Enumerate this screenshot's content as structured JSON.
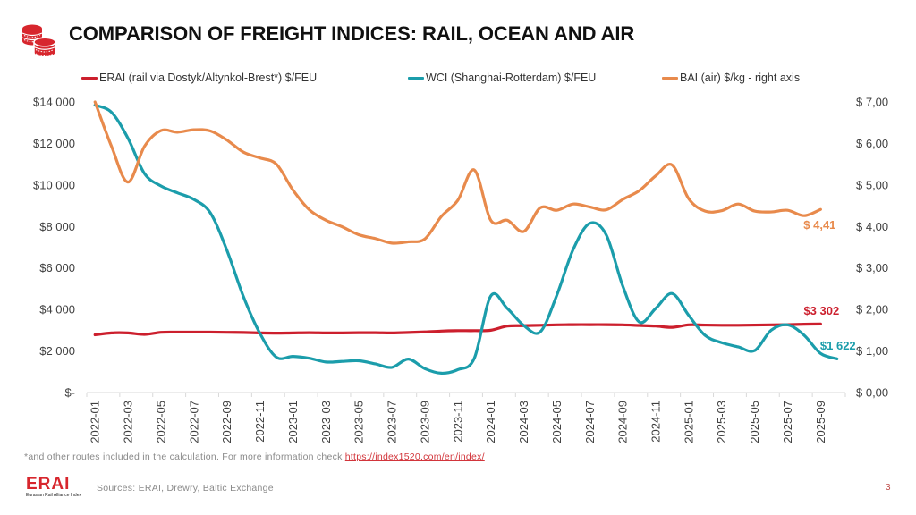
{
  "header": {
    "title": "COMPARISON OF FREIGHT INDICES: RAIL, OCEAN AND AIR",
    "icon": "coins-stack-icon"
  },
  "chart_data": {
    "type": "line",
    "title": "COMPARISON OF FREIGHT INDICES: RAIL, OCEAN AND AIR",
    "xlabel": "",
    "ylabel": "",
    "legend_position": "top",
    "grid": false,
    "x": [
      "2022-01",
      "2022-02",
      "2022-03",
      "2022-04",
      "2022-05",
      "2022-06",
      "2022-07",
      "2022-08",
      "2022-09",
      "2022-10",
      "2022-11",
      "2022-12",
      "2023-01",
      "2023-02",
      "2023-03",
      "2023-04",
      "2023-05",
      "2023-06",
      "2023-07",
      "2023-08",
      "2023-09",
      "2023-10",
      "2023-11",
      "2023-12",
      "2024-01",
      "2024-02",
      "2024-03",
      "2024-04",
      "2024-05",
      "2024-06",
      "2024-07",
      "2024-08",
      "2024-09",
      "2024-10",
      "2024-11",
      "2024-12",
      "2025-01",
      "2025-02",
      "2025-03",
      "2025-04",
      "2025-05",
      "2025-06",
      "2025-07",
      "2025-08",
      "2025-09",
      "2025-10"
    ],
    "x_tick_every": 2,
    "y_left": {
      "range": [
        0,
        14000
      ],
      "ticks": [
        0,
        2000,
        4000,
        6000,
        8000,
        10000,
        12000,
        14000
      ],
      "tick_labels": [
        "$-",
        "$2 000",
        "$4 000",
        "$6 000",
        "$8 000",
        "$10 000",
        "$12 000",
        "$14 000"
      ]
    },
    "y_right": {
      "range": [
        0,
        7
      ],
      "ticks": [
        0,
        1,
        2,
        3,
        4,
        5,
        6,
        7
      ],
      "tick_labels": [
        "$ 0,00",
        "$ 1,00",
        "$ 2,00",
        "$ 3,00",
        "$ 4,00",
        "$ 5,00",
        "$ 6,00",
        "$ 7,00"
      ]
    },
    "series": [
      {
        "id": "erai",
        "name": "ERAI (rail via Dostyk/Altynkol-Brest*)  $/FEU",
        "axis": "left",
        "color": "#CC1F2D",
        "end_label": "$3 302",
        "values": [
          2780,
          2870,
          2870,
          2800,
          2900,
          2910,
          2910,
          2910,
          2900,
          2890,
          2870,
          2860,
          2870,
          2880,
          2870,
          2870,
          2880,
          2880,
          2870,
          2890,
          2920,
          2960,
          2980,
          2980,
          3000,
          3200,
          3220,
          3240,
          3260,
          3270,
          3270,
          3270,
          3260,
          3230,
          3200,
          3140,
          3260,
          3250,
          3240,
          3240,
          3250,
          3260,
          3270,
          3290,
          3302,
          null
        ]
      },
      {
        "id": "wci",
        "name": "WCI (Shanghai-Rotterdam) $/FEU",
        "axis": "left",
        "color": "#1B9DAB",
        "end_label": "$1 622",
        "values": [
          13850,
          13500,
          12250,
          10550,
          9950,
          9620,
          9300,
          8650,
          6850,
          4620,
          2850,
          1700,
          1740,
          1650,
          1470,
          1500,
          1530,
          1380,
          1210,
          1610,
          1150,
          930,
          1100,
          1650,
          4650,
          4050,
          3230,
          2920,
          4680,
          6900,
          8150,
          7600,
          5140,
          3400,
          4050,
          4770,
          3720,
          2750,
          2400,
          2200,
          2020,
          3000,
          3260,
          2760,
          1880,
          1622
        ]
      },
      {
        "id": "bai",
        "name": "BAI (air) $/kg - right axis",
        "axis": "right",
        "color": "#E88A4C",
        "end_label": "$ 4,41",
        "values": [
          7.0,
          5.93,
          5.07,
          5.93,
          6.31,
          6.27,
          6.33,
          6.3,
          6.08,
          5.79,
          5.65,
          5.5,
          4.88,
          4.4,
          4.15,
          3.99,
          3.8,
          3.71,
          3.6,
          3.63,
          3.7,
          4.24,
          4.63,
          5.36,
          4.15,
          4.15,
          3.88,
          4.45,
          4.39,
          4.54,
          4.47,
          4.4,
          4.65,
          4.86,
          5.22,
          5.48,
          4.67,
          4.37,
          4.38,
          4.54,
          4.37,
          4.35,
          4.39,
          4.26,
          4.41,
          null
        ]
      }
    ]
  },
  "footer": {
    "note_text": "*and other routes included in the calculation. For more information check ",
    "note_link": "https://index1520.com/en/index/",
    "logo_text": "ERAI",
    "logo_subtitle": "Eurasian Rail Alliance Index",
    "sources": "Sources: ERAI, Drewry, Baltic Exchange",
    "page_number": "3"
  }
}
